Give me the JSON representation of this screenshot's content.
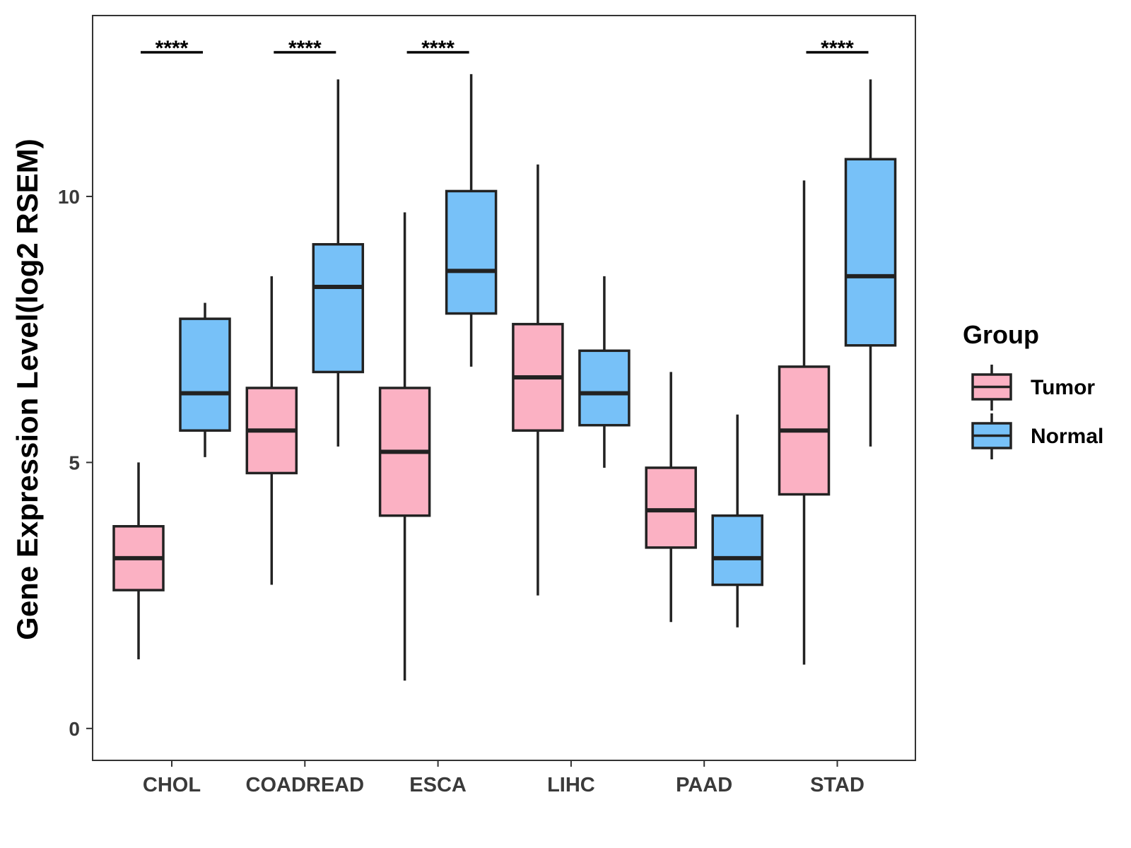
{
  "chart_data": {
    "type": "boxplot",
    "title": "",
    "xlabel": "",
    "ylabel": "Gene Expression Level(log2 RSEM)",
    "ylim": [
      -0.6,
      13.4
    ],
    "yticks": [
      0,
      5,
      10
    ],
    "ytick_labels": [
      "0",
      "5",
      "10"
    ],
    "categories": [
      "CHOL",
      "COADREAD",
      "ESCA",
      "LIHC",
      "PAAD",
      "STAD"
    ],
    "grid": false,
    "legend": {
      "title": "Group",
      "position": "right",
      "entries": [
        "Tumor",
        "Normal"
      ]
    },
    "series": [
      {
        "name": "Tumor",
        "color": "#FBB1C3",
        "boxes": [
          {
            "min": 1.3,
            "q1": 2.6,
            "median": 3.2,
            "q3": 3.8,
            "max": 5.0
          },
          {
            "min": 2.7,
            "q1": 4.8,
            "median": 5.6,
            "q3": 6.4,
            "max": 8.5
          },
          {
            "min": 0.9,
            "q1": 4.0,
            "median": 5.2,
            "q3": 6.4,
            "max": 9.7
          },
          {
            "min": 2.5,
            "q1": 5.6,
            "median": 6.6,
            "q3": 7.6,
            "max": 10.6
          },
          {
            "min": 2.0,
            "q1": 3.4,
            "median": 4.1,
            "q3": 4.9,
            "max": 6.7
          },
          {
            "min": 1.2,
            "q1": 4.4,
            "median": 5.6,
            "q3": 6.8,
            "max": 10.3
          }
        ]
      },
      {
        "name": "Normal",
        "color": "#77C1F8",
        "boxes": [
          {
            "min": 5.1,
            "q1": 5.6,
            "median": 6.3,
            "q3": 7.7,
            "max": 8.0
          },
          {
            "min": 5.3,
            "q1": 6.7,
            "median": 8.3,
            "q3": 9.1,
            "max": 12.2
          },
          {
            "min": 6.8,
            "q1": 7.8,
            "median": 8.6,
            "q3": 10.1,
            "max": 12.3
          },
          {
            "min": 4.9,
            "q1": 5.7,
            "median": 6.3,
            "q3": 7.1,
            "max": 8.5
          },
          {
            "min": 1.9,
            "q1": 2.7,
            "median": 3.2,
            "q3": 4.0,
            "max": 5.9
          },
          {
            "min": 5.3,
            "q1": 7.2,
            "median": 8.5,
            "q3": 10.7,
            "max": 12.2
          }
        ]
      }
    ],
    "significance": [
      {
        "category": "CHOL",
        "label": "****"
      },
      {
        "category": "COADREAD",
        "label": "****"
      },
      {
        "category": "ESCA",
        "label": "****"
      },
      {
        "category": "STAD",
        "label": "****"
      }
    ]
  }
}
